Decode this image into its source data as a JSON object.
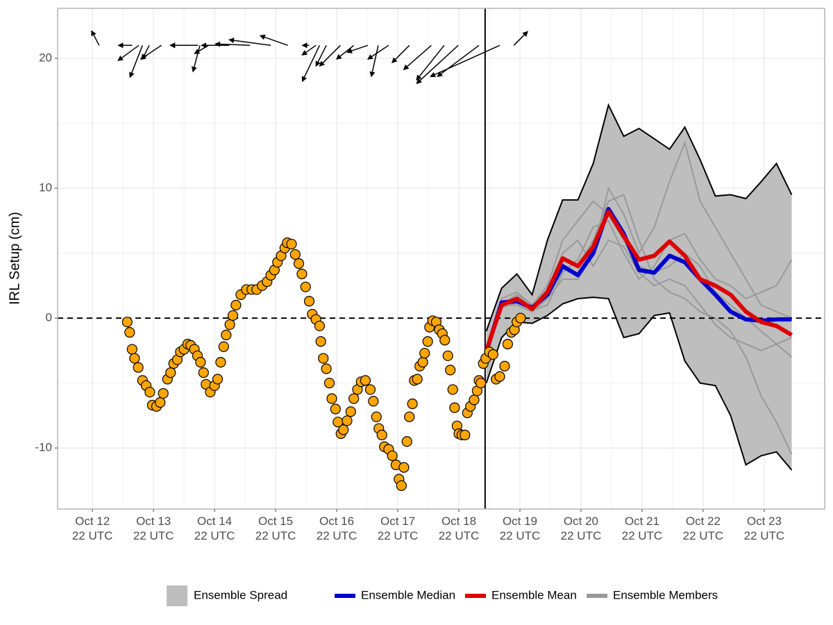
{
  "chart_data": {
    "type": "line",
    "y_label": "IRL Setup (cm)",
    "xlim": [
      -0.57,
      11.99
    ],
    "ylim": [
      -14.7,
      23.85
    ],
    "yticks": [
      -10,
      0,
      10,
      20
    ],
    "xticks": [
      {
        "value": 0,
        "label": "Oct 12\n22 UTC"
      },
      {
        "value": 1,
        "label": "Oct 13\n22 UTC"
      },
      {
        "value": 2,
        "label": "Oct 14\n22 UTC"
      },
      {
        "value": 3,
        "label": "Oct 15\n22 UTC"
      },
      {
        "value": 4,
        "label": "Oct 16\n22 UTC"
      },
      {
        "value": 5,
        "label": "Oct 17\n22 UTC"
      },
      {
        "value": 6,
        "label": "Oct 18\n22 UTC"
      },
      {
        "value": 7,
        "label": "Oct 19\n22 UTC"
      },
      {
        "value": 8,
        "label": "Oct 20\n22 UTC"
      },
      {
        "value": 9,
        "label": "Oct 21\n22 UTC"
      },
      {
        "value": 10,
        "label": "Oct 22\n22 UTC"
      },
      {
        "value": 11,
        "label": "Oct 23\n22 UTC"
      }
    ],
    "grid": true,
    "hline": 0,
    "vline": 6.43,
    "observations": {
      "color": "#FFA500",
      "x": [
        0.57,
        0.61,
        0.65,
        0.69,
        0.75,
        0.82,
        0.88,
        0.94,
        0.98,
        1.05,
        1.11,
        1.16,
        1.23,
        1.28,
        1.33,
        1.39,
        1.44,
        1.5,
        1.56,
        1.61,
        1.67,
        1.72,
        1.77,
        1.82,
        1.86,
        1.93,
        2.0,
        2.05,
        2.1,
        2.15,
        2.19,
        2.25,
        2.3,
        2.35,
        2.43,
        2.52,
        2.61,
        2.69,
        2.78,
        2.86,
        2.92,
        2.98,
        3.03,
        3.09,
        3.15,
        3.19,
        3.26,
        3.32,
        3.38,
        3.43,
        3.49,
        3.55,
        3.6,
        3.66,
        3.72,
        3.74,
        3.78,
        3.83,
        3.88,
        3.92,
        3.98,
        4.02,
        4.07,
        4.11,
        4.17,
        4.23,
        4.28,
        4.34,
        4.4,
        4.47,
        4.55,
        4.6,
        4.65,
        4.69,
        4.74,
        4.78,
        4.85,
        4.91,
        4.97,
        5.02,
        5.06,
        5.1,
        5.15,
        5.19,
        5.24,
        5.27,
        5.32,
        5.36,
        5.41,
        5.44,
        5.49,
        5.52,
        5.57,
        5.63,
        5.68,
        5.73,
        5.77,
        5.82,
        5.86,
        5.9,
        5.93,
        5.97,
        6.0,
        6.05,
        6.1,
        6.14,
        6.19,
        6.25,
        6.3,
        6.33,
        6.36,
        6.4,
        6.44,
        6.5,
        6.56,
        6.61,
        6.67,
        6.75,
        6.8,
        6.86,
        6.91,
        6.95,
        7.01
      ],
      "values": [
        -0.3,
        -1.1,
        -2.4,
        -3.1,
        -3.8,
        -4.8,
        -5.2,
        -5.7,
        -6.7,
        -6.8,
        -6.5,
        -5.8,
        -4.7,
        -4.2,
        -3.5,
        -3.2,
        -2.6,
        -2.4,
        -2.0,
        -2.1,
        -2.4,
        -2.9,
        -3.4,
        -4.2,
        -5.1,
        -5.7,
        -5.2,
        -4.7,
        -3.4,
        -2.2,
        -1.3,
        -0.5,
        0.2,
        1.0,
        1.8,
        2.2,
        2.2,
        2.2,
        2.5,
        2.8,
        3.3,
        3.7,
        4.3,
        4.8,
        5.4,
        5.8,
        5.7,
        4.9,
        4.2,
        3.4,
        2.4,
        1.3,
        0.3,
        -0.1,
        -0.6,
        -1.8,
        -3.1,
        -3.9,
        -5.0,
        -6.2,
        -7.0,
        -8.0,
        -8.9,
        -8.6,
        -7.9,
        -7.2,
        -6.2,
        -5.5,
        -4.9,
        -4.8,
        -5.5,
        -6.4,
        -7.6,
        -8.5,
        -9.0,
        -9.9,
        -10.1,
        -10.6,
        -11.3,
        -12.4,
        -12.9,
        -11.5,
        -9.5,
        -7.6,
        -6.6,
        -4.8,
        -4.7,
        -3.7,
        -3.4,
        -2.7,
        -1.8,
        -0.7,
        -0.2,
        -0.3,
        -0.9,
        -1.2,
        -1.7,
        -2.9,
        -4.0,
        -5.5,
        -6.9,
        -8.3,
        -8.9,
        -9.0,
        -9.0,
        -7.3,
        -6.8,
        -6.3,
        -5.6,
        -4.8,
        -5.0,
        -3.5,
        -3.1,
        -2.6,
        -2.8,
        -4.7,
        -4.5,
        -3.7,
        -2.0,
        -1.1,
        -0.9,
        -0.3,
        0.0
      ]
    },
    "ensemble_x": [
      6.45,
      6.7,
      6.95,
      7.2,
      7.45,
      7.7,
      7.95,
      8.2,
      8.45,
      8.7,
      8.95,
      9.2,
      9.45,
      9.7,
      9.95,
      10.2,
      10.45,
      10.7,
      10.95,
      11.2,
      11.45
    ],
    "spread": {
      "name": "Ensemble Spread",
      "color": "#BEBEBE",
      "upper": [
        -1.0,
        2.3,
        3.4,
        1.8,
        6.0,
        9.1,
        9.1,
        11.9,
        16.4,
        14.0,
        14.6,
        13.8,
        13.0,
        14.7,
        12.2,
        9.4,
        9.5,
        9.2,
        10.5,
        11.9,
        9.5
      ],
      "lower": [
        -5.0,
        -1.5,
        -0.3,
        -0.4,
        0.2,
        1.1,
        1.5,
        1.6,
        1.5,
        -1.5,
        -1.2,
        0.2,
        0.4,
        -3.3,
        -5.0,
        -5.2,
        -7.5,
        -11.3,
        -10.6,
        -10.3,
        -11.7
      ]
    },
    "members": {
      "name": "Ensemble Members",
      "color": "#999999",
      "values": [
        [
          -2.5,
          1.5,
          2.0,
          1.0,
          2.5,
          6.0,
          7.5,
          9.0,
          8.0,
          6.0,
          4.0,
          3.5,
          4.0,
          5.0,
          4.0,
          2.0,
          1.0,
          0.0,
          -1.0,
          -2.0,
          -3.0
        ],
        [
          -2.6,
          1.0,
          1.0,
          0.5,
          1.5,
          3.0,
          3.0,
          5.0,
          10.0,
          8.0,
          5.0,
          7.0,
          10.5,
          13.5,
          9.0,
          7.0,
          5.0,
          3.0,
          1.0,
          0.5,
          0.0
        ],
        [
          -2.4,
          1.2,
          1.5,
          0.8,
          2.0,
          4.5,
          4.0,
          6.0,
          9.0,
          9.5,
          6.0,
          3.0,
          2.0,
          1.5,
          0.5,
          0.0,
          -1.0,
          -3.0,
          -6.0,
          -8.0,
          -10.5
        ],
        [
          -2.7,
          0.8,
          1.2,
          0.6,
          1.0,
          3.5,
          4.5,
          7.0,
          7.5,
          5.0,
          3.0,
          4.0,
          6.0,
          6.5,
          4.5,
          3.0,
          2.5,
          1.5,
          2.0,
          2.5,
          4.5
        ],
        [
          -2.5,
          1.1,
          1.8,
          1.0,
          2.2,
          5.0,
          6.0,
          4.0,
          6.0,
          5.5,
          3.5,
          2.5,
          3.0,
          2.5,
          1.0,
          -0.5,
          -1.5,
          -2.0,
          -2.5,
          -2.0,
          -1.5
        ]
      ]
    },
    "series": [
      {
        "name": "Ensemble Median",
        "color": "#0000CD",
        "values": [
          -2.6,
          1.2,
          1.3,
          0.8,
          1.8,
          4.0,
          3.3,
          5.0,
          8.4,
          6.5,
          3.7,
          3.5,
          4.8,
          4.3,
          3.0,
          1.8,
          0.5,
          -0.1,
          -0.2,
          -0.1,
          -0.1
        ]
      },
      {
        "name": "Ensemble Mean",
        "color": "#DD0000",
        "values": [
          -2.5,
          1.0,
          1.5,
          0.7,
          2.0,
          4.6,
          4.0,
          5.5,
          8.2,
          6.3,
          4.5,
          4.8,
          5.9,
          4.8,
          3.0,
          2.5,
          1.8,
          0.5,
          -0.3,
          -0.6,
          -1.3
        ]
      }
    ],
    "wind": {
      "level": 21,
      "x": [
        0.11,
        0.65,
        0.76,
        0.82,
        0.93,
        1.13,
        1.5,
        1.73,
        1.76,
        1.9,
        2.24,
        2.58,
        2.92,
        3.2,
        3.55,
        3.66,
        3.72,
        3.83,
        4.06,
        4.28,
        4.51,
        4.68,
        4.85,
        5.19,
        5.55,
        5.76,
        5.99,
        6.33,
        6.67,
        6.9
      ],
      "u": [
        -1.1,
        -2.0,
        -3.0,
        -1.8,
        -1.0,
        -3.0,
        -2.0,
        -4.0,
        -1.0,
        -2.0,
        -4.0,
        -5.0,
        -6.0,
        -4.0,
        -1.0,
        -2.0,
        -2.5,
        -1.5,
        -3.0,
        -2.5,
        -3.0,
        -1.0,
        -3.0,
        -2.5,
        -4.0,
        -4.0,
        -6.0,
        -6.0,
        -10.0,
        2.0
      ],
      "v": [
        2.1,
        0.0,
        -2.2,
        -4.6,
        -2.0,
        -2.0,
        0.0,
        0.0,
        -3.8,
        -1.2,
        0.0,
        0.2,
        0.8,
        1.4,
        0.0,
        -1.4,
        -5.2,
        -3.0,
        -3.0,
        -2.0,
        -1.0,
        -4.5,
        -2.0,
        -2.5,
        -3.5,
        -5.0,
        -5.5,
        -4.5,
        -4.5,
        2.0
      ]
    }
  }
}
